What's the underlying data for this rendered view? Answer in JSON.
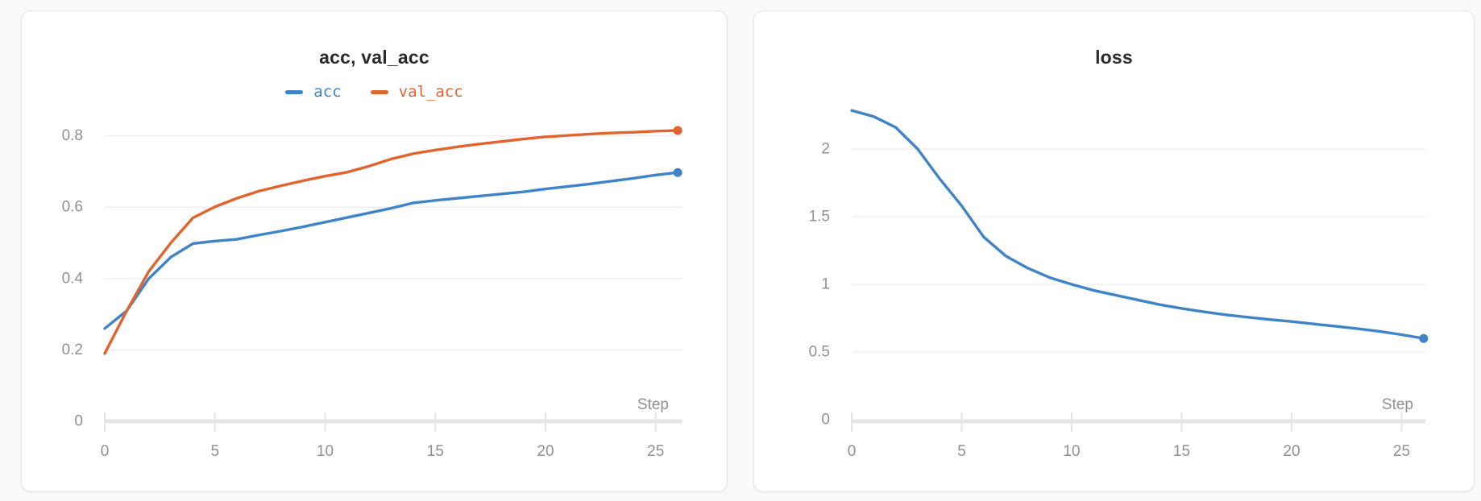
{
  "theme": {
    "page_background": "#fafafa",
    "panel_background": "#ffffff",
    "panel_border": "#e4e4e4",
    "title_color": "#2b2b2b",
    "tick_color": "#8f8f98",
    "gridline_color": "#ededee",
    "axis_color": "#e5e5e6",
    "series_blue": "#3e84c6",
    "series_orange": "#e1632e"
  },
  "chart_data": [
    {
      "type": "line",
      "title": "acc, val_acc",
      "xlabel": "Step",
      "grid": true,
      "legend_position": "top-center",
      "xlim": [
        0,
        26
      ],
      "ylim": [
        0,
        0.9
      ],
      "xticks": [
        0,
        5,
        10,
        15,
        20,
        25
      ],
      "yticks": [
        0.8,
        0.6,
        0.4,
        0.2,
        0
      ],
      "x": [
        0,
        1,
        2,
        3,
        4,
        5,
        6,
        7,
        8,
        9,
        10,
        11,
        12,
        13,
        14,
        15,
        16,
        17,
        18,
        19,
        20,
        21,
        22,
        23,
        24,
        25,
        26
      ],
      "series": [
        {
          "name": "acc",
          "color": "#3e84c6",
          "endpoint_marker": true,
          "values": [
            0.26,
            0.31,
            0.4,
            0.46,
            0.498,
            0.505,
            0.51,
            0.522,
            0.533,
            0.545,
            0.558,
            0.571,
            0.584,
            0.597,
            0.612,
            0.619,
            0.625,
            0.631,
            0.637,
            0.643,
            0.651,
            0.658,
            0.665,
            0.673,
            0.681,
            0.69,
            0.697
          ]
        },
        {
          "name": "val_acc",
          "color": "#e1632e",
          "endpoint_marker": true,
          "values": [
            0.19,
            0.31,
            0.42,
            0.5,
            0.57,
            0.601,
            0.625,
            0.645,
            0.66,
            0.674,
            0.687,
            0.698,
            0.715,
            0.735,
            0.75,
            0.76,
            0.769,
            0.777,
            0.784,
            0.791,
            0.797,
            0.801,
            0.805,
            0.808,
            0.81,
            0.813,
            0.815
          ]
        }
      ]
    },
    {
      "type": "line",
      "title": "loss",
      "xlabel": "Step",
      "grid": true,
      "xlim": [
        0,
        26
      ],
      "ylim": [
        0,
        2.45
      ],
      "xticks": [
        0,
        5,
        10,
        15,
        20,
        25
      ],
      "yticks": [
        2,
        1.5,
        1,
        0.5,
        0
      ],
      "x": [
        0,
        1,
        2,
        3,
        4,
        5,
        6,
        7,
        8,
        9,
        10,
        11,
        12,
        13,
        14,
        15,
        16,
        17,
        18,
        19,
        20,
        21,
        22,
        23,
        24,
        25,
        26
      ],
      "series": [
        {
          "name": "loss",
          "color": "#3e84c6",
          "endpoint_marker": true,
          "values": [
            2.285,
            2.24,
            2.16,
            2.0,
            1.78,
            1.58,
            1.35,
            1.21,
            1.12,
            1.05,
            1.0,
            0.955,
            0.92,
            0.885,
            0.85,
            0.822,
            0.797,
            0.775,
            0.757,
            0.74,
            0.725,
            0.707,
            0.69,
            0.672,
            0.652,
            0.628,
            0.6
          ]
        }
      ]
    }
  ]
}
